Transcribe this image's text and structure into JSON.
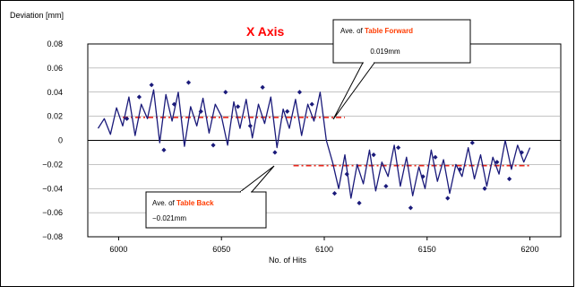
{
  "chart_data": {
    "type": "line",
    "title": "X Axis",
    "xlabel": "No. of  Hits",
    "ylabel": "Deviation [mm]",
    "xlim": [
      5985,
      6215
    ],
    "ylim": [
      -0.08,
      0.08
    ],
    "xticks": [
      6000,
      6050,
      6100,
      6150,
      6200
    ],
    "yticks": [
      0.08,
      0.06,
      0.04,
      0.02,
      0,
      -0.02,
      -0.04,
      -0.06,
      -0.08
    ],
    "ytick_labels": [
      "0.08",
      "0.06",
      "0.04",
      "0.02",
      "0",
      "−0.02",
      "−0.04",
      "−0.06",
      "−0.08"
    ],
    "grid": true,
    "series": [
      {
        "values": [
          {
            "x": 5990,
            "y": 0.01
          },
          {
            "x": 5993,
            "y": 0.018
          },
          {
            "x": 5996,
            "y": 0.005
          },
          {
            "x": 5999,
            "y": 0.027
          },
          {
            "x": 6002,
            "y": 0.012
          },
          {
            "x": 6005,
            "y": 0.036
          },
          {
            "x": 6008,
            "y": 0.004
          },
          {
            "x": 6011,
            "y": 0.03
          },
          {
            "x": 6014,
            "y": 0.018
          },
          {
            "x": 6017,
            "y": 0.042
          },
          {
            "x": 6020,
            "y": -0.002
          },
          {
            "x": 6023,
            "y": 0.038
          },
          {
            "x": 6026,
            "y": 0.016
          },
          {
            "x": 6029,
            "y": 0.04
          },
          {
            "x": 6032,
            "y": -0.005
          },
          {
            "x": 6035,
            "y": 0.028
          },
          {
            "x": 6038,
            "y": 0.012
          },
          {
            "x": 6041,
            "y": 0.035
          },
          {
            "x": 6044,
            "y": 0.006
          },
          {
            "x": 6047,
            "y": 0.03
          },
          {
            "x": 6050,
            "y": 0.02
          },
          {
            "x": 6053,
            "y": -0.004
          },
          {
            "x": 6056,
            "y": 0.032
          },
          {
            "x": 6059,
            "y": 0.01
          },
          {
            "x": 6062,
            "y": 0.034
          },
          {
            "x": 6065,
            "y": 0.002
          },
          {
            "x": 6068,
            "y": 0.03
          },
          {
            "x": 6071,
            "y": 0.014
          },
          {
            "x": 6074,
            "y": 0.036
          },
          {
            "x": 6077,
            "y": -0.006
          },
          {
            "x": 6080,
            "y": 0.026
          },
          {
            "x": 6083,
            "y": 0.01
          },
          {
            "x": 6086,
            "y": 0.034
          },
          {
            "x": 6089,
            "y": 0.004
          },
          {
            "x": 6092,
            "y": 0.03
          },
          {
            "x": 6095,
            "y": 0.016
          },
          {
            "x": 6098,
            "y": 0.04
          },
          {
            "x": 6101,
            "y": 0.0
          },
          {
            "x": 6104,
            "y": -0.018
          },
          {
            "x": 6107,
            "y": -0.04
          },
          {
            "x": 6110,
            "y": -0.012
          },
          {
            "x": 6113,
            "y": -0.048
          },
          {
            "x": 6116,
            "y": -0.02
          },
          {
            "x": 6119,
            "y": -0.036
          },
          {
            "x": 6122,
            "y": -0.008
          },
          {
            "x": 6125,
            "y": -0.042
          },
          {
            "x": 6128,
            "y": -0.018
          },
          {
            "x": 6131,
            "y": -0.03
          },
          {
            "x": 6134,
            "y": -0.004
          },
          {
            "x": 6137,
            "y": -0.038
          },
          {
            "x": 6140,
            "y": -0.014
          },
          {
            "x": 6143,
            "y": -0.046
          },
          {
            "x": 6146,
            "y": -0.022
          },
          {
            "x": 6149,
            "y": -0.04
          },
          {
            "x": 6152,
            "y": -0.008
          },
          {
            "x": 6155,
            "y": -0.034
          },
          {
            "x": 6158,
            "y": -0.016
          },
          {
            "x": 6161,
            "y": -0.044
          },
          {
            "x": 6164,
            "y": -0.02
          },
          {
            "x": 6167,
            "y": -0.03
          },
          {
            "x": 6170,
            "y": -0.006
          },
          {
            "x": 6173,
            "y": -0.032
          },
          {
            "x": 6176,
            "y": -0.012
          },
          {
            "x": 6179,
            "y": -0.038
          },
          {
            "x": 6182,
            "y": -0.014
          },
          {
            "x": 6185,
            "y": -0.028
          },
          {
            "x": 6188,
            "y": 0.0
          },
          {
            "x": 6191,
            "y": -0.024
          },
          {
            "x": 6194,
            "y": -0.004
          },
          {
            "x": 6197,
            "y": -0.018
          },
          {
            "x": 6200,
            "y": -0.006
          }
        ]
      }
    ],
    "markers": [
      {
        "x": 6004,
        "y": 0.018
      },
      {
        "x": 6010,
        "y": 0.036
      },
      {
        "x": 6016,
        "y": 0.046
      },
      {
        "x": 6022,
        "y": -0.008
      },
      {
        "x": 6027,
        "y": 0.03
      },
      {
        "x": 6034,
        "y": 0.048
      },
      {
        "x": 6040,
        "y": 0.024
      },
      {
        "x": 6046,
        "y": -0.004
      },
      {
        "x": 6052,
        "y": 0.04
      },
      {
        "x": 6058,
        "y": 0.028
      },
      {
        "x": 6064,
        "y": 0.012
      },
      {
        "x": 6070,
        "y": 0.044
      },
      {
        "x": 6076,
        "y": -0.01
      },
      {
        "x": 6082,
        "y": 0.024
      },
      {
        "x": 6088,
        "y": 0.04
      },
      {
        "x": 6094,
        "y": 0.03
      },
      {
        "x": 6105,
        "y": -0.044
      },
      {
        "x": 6111,
        "y": -0.028
      },
      {
        "x": 6117,
        "y": -0.052
      },
      {
        "x": 6124,
        "y": -0.012
      },
      {
        "x": 6130,
        "y": -0.038
      },
      {
        "x": 6136,
        "y": -0.006
      },
      {
        "x": 6142,
        "y": -0.056
      },
      {
        "x": 6148,
        "y": -0.03
      },
      {
        "x": 6154,
        "y": -0.014
      },
      {
        "x": 6160,
        "y": -0.048
      },
      {
        "x": 6166,
        "y": -0.024
      },
      {
        "x": 6172,
        "y": -0.002
      },
      {
        "x": 6178,
        "y": -0.04
      },
      {
        "x": 6184,
        "y": -0.018
      },
      {
        "x": 6190,
        "y": -0.032
      },
      {
        "x": 6196,
        "y": -0.01
      }
    ],
    "averages": [
      {
        "label": "Table Forward",
        "value": 0.019,
        "x_range": [
          6002,
          6110
        ]
      },
      {
        "label": "Table Back",
        "value": -0.021,
        "x_range": [
          6085,
          6200
        ]
      }
    ],
    "annotations": [
      {
        "prefix": "Ave. of ",
        "highlight": "Table Forward",
        "value_text": "0.019mm"
      },
      {
        "prefix": "Ave. of ",
        "highlight": "Table Back",
        "value_text": "−0.021mm"
      }
    ]
  },
  "colors": {
    "series": "#1a1a7a",
    "average_line": "#e8261c",
    "grid": "#888888",
    "title": "#ff0000",
    "callout_accent": "#ff3b00"
  }
}
